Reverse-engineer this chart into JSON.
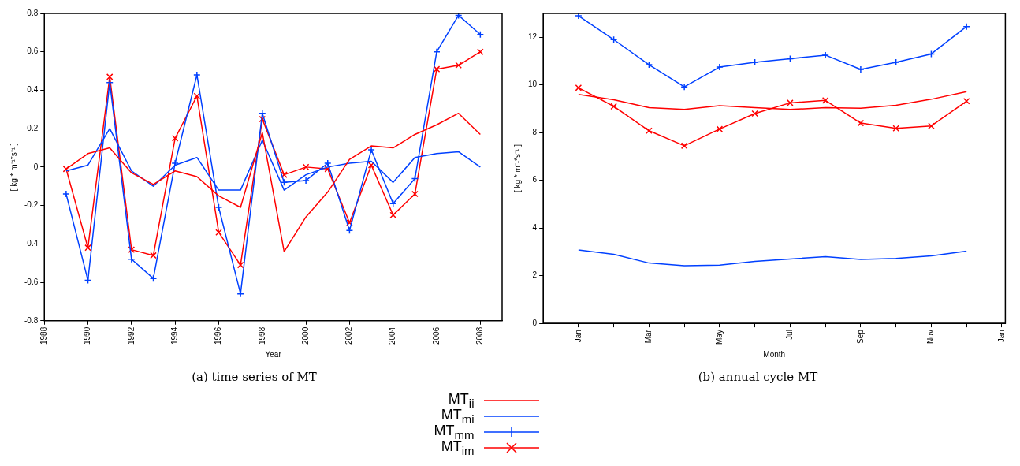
{
  "chart_data": [
    {
      "type": "line",
      "title": "(a) time series of MT",
      "xlabel": "Year",
      "ylabel": "[ kg * m⁻¹*s⁻¹ ]",
      "x": [
        1989,
        1990,
        1991,
        1992,
        1993,
        1994,
        1995,
        1996,
        1997,
        1998,
        1999,
        2000,
        2001,
        2002,
        2003,
        2004,
        2005,
        2006,
        2007,
        2008
      ],
      "series": [
        {
          "name": "MT$_{ii}$",
          "color": "#ff0000",
          "marker": "none",
          "values": [
            -0.01,
            0.07,
            0.1,
            -0.03,
            -0.09,
            -0.02,
            -0.05,
            -0.15,
            -0.21,
            0.18,
            -0.44,
            -0.26,
            -0.13,
            0.04,
            0.11,
            0.1,
            0.17,
            0.22,
            0.28,
            0.17
          ]
        },
        {
          "name": "MT$_{mi}$",
          "color": "#0040ff",
          "marker": "none",
          "values": [
            -0.02,
            0.01,
            0.2,
            -0.02,
            -0.1,
            0.01,
            0.05,
            -0.12,
            -0.12,
            0.14,
            -0.12,
            -0.04,
            0.0,
            0.02,
            0.03,
            -0.08,
            0.05,
            0.07,
            0.08,
            0.0
          ]
        },
        {
          "name": "MT$_{mm}$",
          "color": "#0040ff",
          "marker": "cross",
          "values": [
            -0.14,
            -0.59,
            0.44,
            -0.48,
            -0.58,
            0.02,
            0.48,
            -0.21,
            -0.66,
            0.28,
            -0.08,
            -0.07,
            0.02,
            -0.33,
            0.09,
            -0.19,
            -0.06,
            0.6,
            0.79,
            0.69
          ]
        },
        {
          "name": "MT$_{im}$",
          "color": "#ff0000",
          "marker": "x",
          "values": [
            -0.01,
            -0.42,
            0.47,
            -0.43,
            -0.46,
            0.15,
            0.37,
            -0.34,
            -0.51,
            0.25,
            -0.04,
            0.0,
            -0.01,
            -0.29,
            0.01,
            -0.25,
            -0.14,
            0.51,
            0.53,
            0.6
          ]
        }
      ],
      "xlim": [
        1988,
        2009
      ],
      "xticks": [
        1988,
        1990,
        1992,
        1994,
        1996,
        1998,
        2000,
        2002,
        2004,
        2006,
        2008
      ],
      "ylim": [
        -0.8,
        0.8
      ],
      "yticks": [
        -0.8,
        -0.6,
        -0.4,
        -0.2,
        0,
        0.2,
        0.4,
        0.6,
        0.8
      ],
      "grid": false,
      "legend": "bottom"
    },
    {
      "type": "line",
      "title": "(b) annual cycle MT",
      "xlabel": "Month",
      "ylabel": "[ kg * m⁻¹*s⁻¹ ]",
      "categories": [
        "Jan",
        null,
        "Mar",
        null,
        "May",
        null,
        "Jul",
        null,
        "Sep",
        null,
        "Nov",
        null,
        "Jan"
      ],
      "series": [
        {
          "color": "#ff0000",
          "marker": "none",
          "values": [
            9.6,
            9.38,
            9.05,
            8.97,
            9.13,
            9.05,
            8.97,
            9.05,
            9.02,
            9.15,
            9.4,
            9.72,
            null
          ]
        },
        {
          "color": "#0040ff",
          "marker": "none",
          "values": [
            3.08,
            2.9,
            2.53,
            2.42,
            2.44,
            2.6,
            2.7,
            2.8,
            2.68,
            2.72,
            2.83,
            3.03,
            null
          ]
        },
        {
          "color": "#0040ff",
          "marker": "cross",
          "values": [
            12.9,
            11.9,
            10.85,
            9.92,
            10.75,
            10.95,
            11.1,
            11.25,
            10.65,
            10.95,
            11.3,
            12.45,
            null
          ]
        },
        {
          "color": "#ff0000",
          "marker": "x",
          "values": [
            9.88,
            9.1,
            8.08,
            7.45,
            8.15,
            8.8,
            9.25,
            9.35,
            8.4,
            8.18,
            8.28,
            9.32,
            null
          ]
        }
      ],
      "ylim": [
        0,
        13
      ],
      "yticks": [
        0,
        2,
        4,
        6,
        8,
        10,
        12
      ],
      "grid": false
    }
  ]
}
